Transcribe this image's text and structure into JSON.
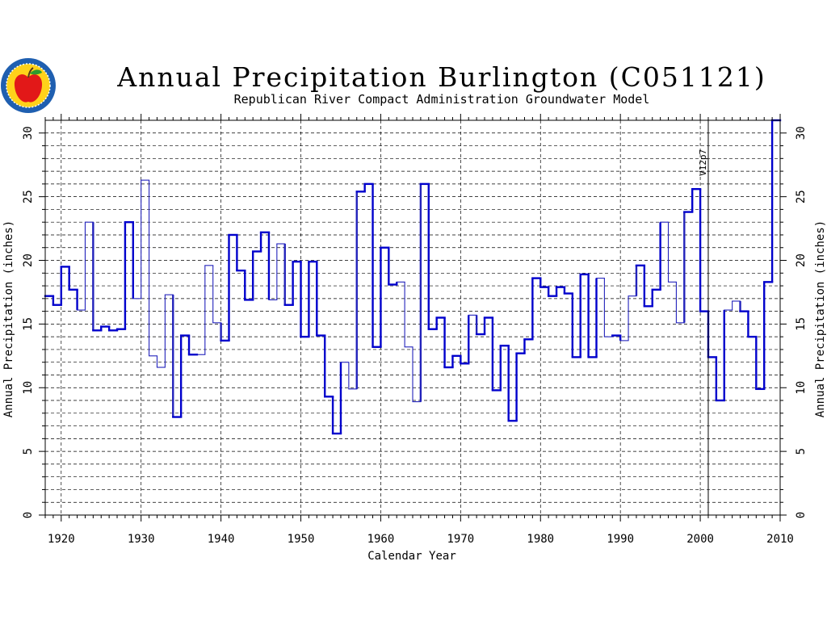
{
  "chart_data": {
    "type": "line",
    "title": "Annual Precipitation Burlington (C051121)",
    "subtitle": "Republican River Compact Administration Groundwater Model",
    "xlabel": "Calendar Year",
    "ylabel": "Annual Precipitation (inches)",
    "xlim": [
      1918,
      2010
    ],
    "ylim": [
      0,
      31
    ],
    "x_ticks": [
      1920,
      1930,
      1940,
      1950,
      1960,
      1970,
      1980,
      1990,
      2000,
      2010
    ],
    "y_ticks": [
      0,
      5,
      10,
      15,
      20,
      25,
      30
    ],
    "grid": true,
    "step": "post",
    "annotation": {
      "label": "V12p7",
      "x": 2001
    },
    "colors": {
      "observed": "#0000cc",
      "estimated": "#2222bb"
    },
    "series": [
      {
        "x": [
          1918,
          1919,
          1920,
          1921,
          1922,
          1923,
          1924,
          1925,
          1926,
          1927,
          1928,
          1929,
          1930,
          1931,
          1932,
          1933,
          1934,
          1935,
          1936,
          1937,
          1938,
          1939,
          1940,
          1941,
          1942,
          1943,
          1944,
          1945,
          1946,
          1947,
          1948,
          1949,
          1950,
          1951,
          1952,
          1953,
          1954,
          1955,
          1956,
          1957,
          1958,
          1959,
          1960,
          1961,
          1962,
          1963,
          1964,
          1965,
          1966,
          1967,
          1968,
          1969,
          1970,
          1971,
          1972,
          1973,
          1974,
          1975,
          1976,
          1977,
          1978,
          1979,
          1980,
          1981,
          1982,
          1983,
          1984,
          1985,
          1986,
          1987,
          1988,
          1989,
          1990,
          1991,
          1992,
          1993,
          1994,
          1995,
          1996,
          1997,
          1998,
          1999,
          2000,
          2001,
          2002,
          2003,
          2004,
          2005,
          2006,
          2007,
          2008,
          2009
        ],
        "values": [
          17.2,
          16.5,
          19.5,
          17.7,
          16.1,
          23.0,
          14.5,
          14.8,
          14.5,
          14.6,
          23.0,
          17.0,
          26.3,
          12.5,
          11.6,
          17.3,
          7.7,
          14.1,
          12.6,
          12.6,
          19.6,
          15.1,
          13.7,
          22.0,
          19.2,
          16.9,
          20.7,
          22.2,
          16.9,
          21.3,
          16.5,
          19.9,
          14.0,
          19.9,
          14.1,
          9.3,
          6.4,
          12.0,
          9.9,
          25.4,
          26.0,
          13.2,
          21.0,
          18.1,
          18.3,
          13.2,
          8.9,
          26.0,
          14.6,
          15.5,
          11.6,
          12.5,
          11.9,
          15.7,
          14.2,
          15.5,
          9.8,
          13.3,
          7.4,
          12.7,
          13.8,
          18.6,
          17.9,
          17.2,
          17.9,
          17.4,
          12.4,
          18.9,
          12.4,
          18.6,
          14.0,
          14.1,
          13.7,
          17.2,
          19.6,
          16.4,
          17.7,
          23.0,
          18.3,
          15.1,
          23.8,
          25.6,
          16.0,
          12.4,
          9.0,
          16.1,
          16.8,
          16.0,
          14.0,
          9.9,
          18.3,
          31.0
        ],
        "estimated": [
          1922,
          1923,
          1929,
          1930,
          1931,
          1932,
          1933,
          1937,
          1938,
          1939,
          1946,
          1947,
          1955,
          1956,
          1962,
          1963,
          1964,
          1971,
          1987,
          1988,
          1990,
          1991,
          1995,
          1996,
          1997,
          2003,
          2004
        ]
      }
    ]
  }
}
